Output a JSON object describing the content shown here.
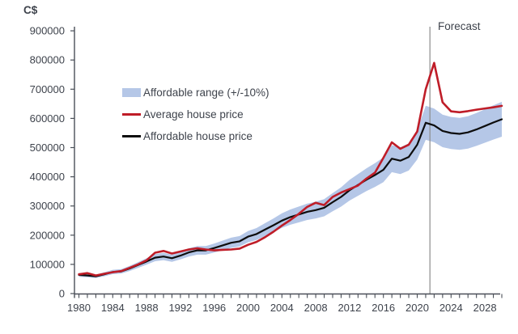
{
  "chart": {
    "unit_label": "C$",
    "forecast_label": "Forecast",
    "colors": {
      "band": "#b5c7e7",
      "average": "#bf1d28",
      "affordable": "#0d0d0d",
      "axis": "#4a4f58",
      "text": "#3e434c",
      "forecast_line": "#8c8c8c"
    },
    "legend": [
      {
        "label": "Affordable range (+/-10%)",
        "swatch": "band-swatch"
      },
      {
        "label": "Average house price",
        "swatch": "red-line-swatch"
      },
      {
        "label": "Affordable house price",
        "swatch": "black-line-swatch"
      }
    ]
  },
  "chart_data": {
    "type": "line",
    "title": "",
    "ylabel": "C$",
    "xlabel": "",
    "ylim": [
      0,
      900000
    ],
    "y_tick_step": 100000,
    "y_tick_labels": [
      "0",
      "100000",
      "200000",
      "300000",
      "400000",
      "500000",
      "600000",
      "700000",
      "800000",
      "900000"
    ],
    "x_range": [
      1980,
      2030
    ],
    "x_tick_labels": [
      "1980",
      "1984",
      "1988",
      "1992",
      "1996",
      "2000",
      "2004",
      "2008",
      "2012",
      "2016",
      "2020",
      "2024",
      "2028"
    ],
    "x_tick_label_years": [
      1980,
      1984,
      1988,
      1992,
      1996,
      2000,
      2004,
      2008,
      2012,
      2016,
      2020,
      2024,
      2028
    ],
    "forecast_line_year": 2021.5,
    "forecast_annotation": "Forecast",
    "legend_position": "upper-left-inside",
    "grid": false,
    "band_pct": 0.1,
    "x": [
      1980,
      1981,
      1982,
      1983,
      1984,
      1985,
      1986,
      1987,
      1988,
      1989,
      1990,
      1991,
      1992,
      1993,
      1994,
      1995,
      1996,
      1997,
      1998,
      1999,
      2000,
      2001,
      2002,
      2003,
      2004,
      2005,
      2006,
      2007,
      2008,
      2009,
      2010,
      2011,
      2012,
      2013,
      2014,
      2015,
      2016,
      2017,
      2018,
      2019,
      2020,
      2021,
      2022,
      2023,
      2024,
      2025,
      2026,
      2027,
      2028,
      2029,
      2030
    ],
    "series": [
      {
        "name": "Average house price",
        "color_key": "average",
        "values": [
          66000,
          70000,
          62000,
          68000,
          73000,
          77000,
          88000,
          100000,
          114000,
          140000,
          146000,
          137000,
          144000,
          151000,
          155000,
          151000,
          148000,
          150000,
          151000,
          154000,
          167000,
          177000,
          193000,
          212000,
          233000,
          252000,
          273000,
          297000,
          311000,
          303000,
          331000,
          346000,
          358000,
          370000,
          394000,
          414000,
          465000,
          518000,
          496000,
          510000,
          555000,
          700000,
          790000,
          655000,
          624000,
          621000,
          625000,
          630000,
          634000,
          638000,
          643000
        ]
      },
      {
        "name": "Affordable house price",
        "color_key": "affordable",
        "values": [
          64000,
          62000,
          59000,
          66000,
          74000,
          76000,
          86000,
          98000,
          110000,
          123000,
          127000,
          121000,
          130000,
          141000,
          148000,
          148000,
          156000,
          165000,
          174000,
          179000,
          195000,
          204000,
          219000,
          234000,
          250000,
          262000,
          271000,
          280000,
          286000,
          294000,
          313000,
          331000,
          354000,
          372000,
          390000,
          406000,
          424000,
          462000,
          455000,
          468000,
          510000,
          585000,
          576000,
          557000,
          550000,
          547000,
          552000,
          562000,
          574000,
          586000,
          597000
        ]
      },
      {
        "name": "Affordable range (+/-10%)",
        "type": "band",
        "band_around": "Affordable house price",
        "pct": 0.1
      }
    ]
  }
}
